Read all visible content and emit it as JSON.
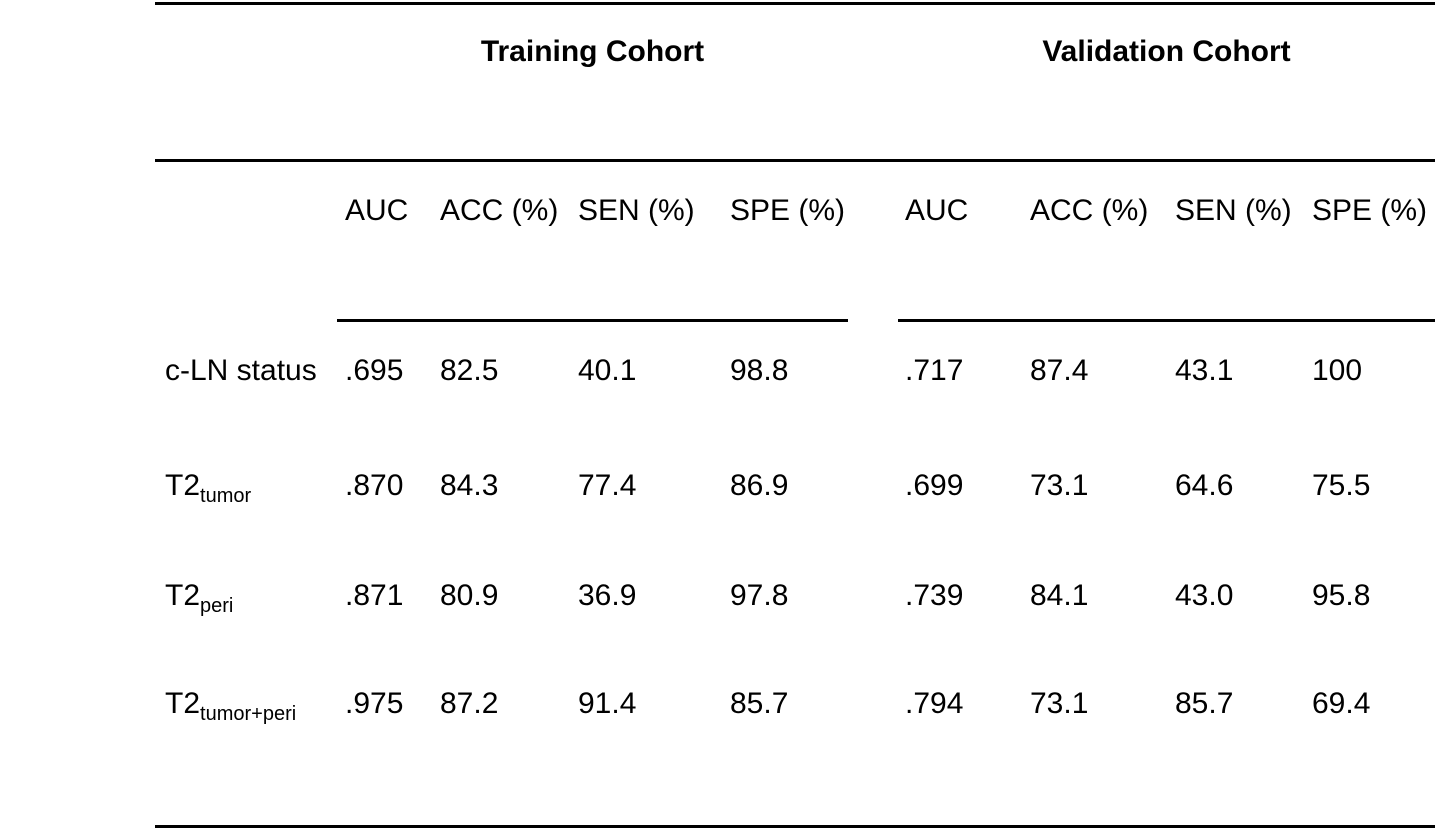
{
  "table": {
    "group_headers": {
      "training": "Training Cohort",
      "validation": "Validation Cohort"
    },
    "column_headers": [
      "AUC",
      "ACC (%)",
      "SEN (%)",
      "SPE (%)",
      "AUC",
      "ACC (%)",
      "SEN (%)",
      "SPE (%)"
    ],
    "rows": [
      {
        "label_base": "c-LN status",
        "label_sub": "",
        "values": [
          ".695",
          "82.5",
          "40.1",
          "98.8",
          ".717",
          "87.4",
          "43.1",
          "100"
        ]
      },
      {
        "label_base": "T2",
        "label_sub": "tumor",
        "values": [
          ".870",
          "84.3",
          "77.4",
          "86.9",
          ".699",
          "73.1",
          "64.6",
          "75.5"
        ]
      },
      {
        "label_base": "T2",
        "label_sub": "peri",
        "values": [
          ".871",
          "80.9",
          "36.9",
          "97.8",
          ".739",
          "84.1",
          "43.0",
          "95.8"
        ]
      },
      {
        "label_base": "T2",
        "label_sub": "tumor+peri",
        "values": [
          ".975",
          "87.2",
          "91.4",
          "85.7",
          ".794",
          "73.1",
          "85.7",
          "69.4"
        ]
      }
    ]
  },
  "chart_data": {
    "type": "table",
    "column_groups": [
      "Training Cohort",
      "Validation Cohort"
    ],
    "columns": [
      "AUC",
      "ACC (%)",
      "SEN (%)",
      "SPE (%)",
      "AUC",
      "ACC (%)",
      "SEN (%)",
      "SPE (%)"
    ],
    "row_labels": [
      "c-LN status",
      "T2tumor",
      "T2peri",
      "T2tumor+peri"
    ],
    "values": [
      [
        0.695,
        82.5,
        40.1,
        98.8,
        0.717,
        87.4,
        43.1,
        100
      ],
      [
        0.87,
        84.3,
        77.4,
        86.9,
        0.699,
        73.1,
        64.6,
        75.5
      ],
      [
        0.871,
        80.9,
        36.9,
        97.8,
        0.739,
        84.1,
        43.0,
        95.8
      ],
      [
        0.975,
        87.2,
        91.4,
        85.7,
        0.794,
        73.1,
        85.7,
        69.4
      ]
    ]
  },
  "colors": {
    "text": "#000000",
    "rule": "#000000",
    "background": "#ffffff"
  }
}
